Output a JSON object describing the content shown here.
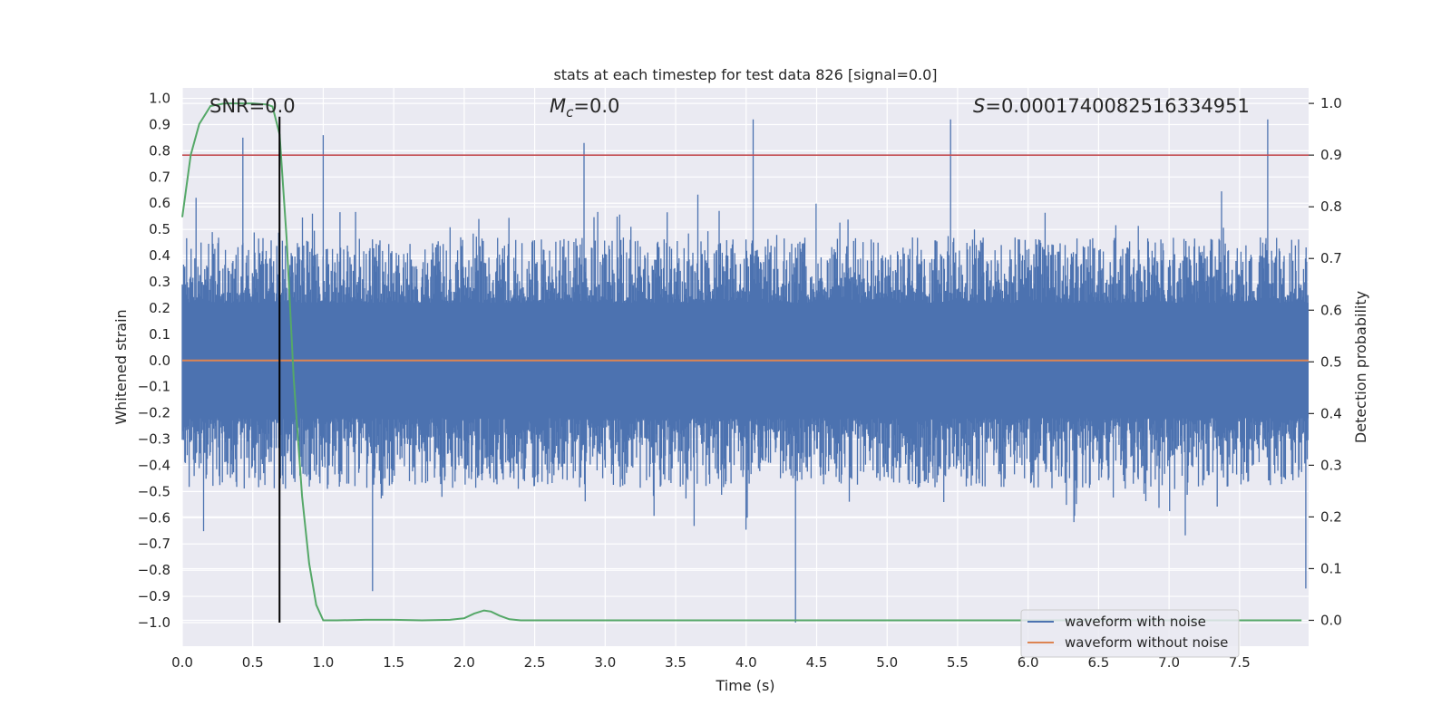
{
  "chart_data": {
    "type": "line",
    "title": "stats at each timestep for test data 826 [signal=0.0]",
    "xlabel": "Time (s)",
    "ylabel": "Whitened strain",
    "y2label": "Detection probability",
    "xlim": [
      0.0,
      7.99
    ],
    "ylim": [
      -1.09,
      1.04
    ],
    "y2lim": [
      -0.05,
      1.03
    ],
    "x_ticks": [
      0.0,
      0.5,
      1.0,
      1.5,
      2.0,
      2.5,
      3.0,
      3.5,
      4.0,
      4.5,
      5.0,
      5.5,
      6.0,
      6.5,
      7.0,
      7.5
    ],
    "x_tick_labels": [
      "0.0",
      "0.5",
      "1.0",
      "1.5",
      "2.0",
      "2.5",
      "3.0",
      "3.5",
      "4.0",
      "4.5",
      "5.0",
      "5.5",
      "6.0",
      "6.5",
      "7.0",
      "7.5"
    ],
    "y_ticks": [
      1.0,
      0.9,
      0.8,
      0.7,
      0.6,
      0.5,
      0.4,
      0.3,
      0.2,
      0.1,
      0.0,
      -0.1,
      -0.2,
      -0.3,
      -0.4,
      -0.5,
      -0.6,
      -0.7,
      -0.8,
      -0.9,
      -1.0
    ],
    "y_tick_labels": [
      "1.0",
      "0.9",
      "0.8",
      "0.7",
      "0.6",
      "0.5",
      "0.4",
      "0.3",
      "0.2",
      "0.1",
      "0.0",
      "−0.1",
      "−0.2",
      "−0.3",
      "−0.4",
      "−0.5",
      "−0.6",
      "−0.7",
      "−0.8",
      "−0.9",
      "−1.0"
    ],
    "y2_ticks": [
      1.0,
      0.9,
      0.8,
      0.7,
      0.6,
      0.5,
      0.4,
      0.3,
      0.2,
      0.1,
      0.0
    ],
    "y2_tick_labels": [
      "1.0",
      "0.9",
      "0.8",
      "0.7",
      "0.6",
      "0.5",
      "0.4",
      "0.3",
      "0.2",
      "0.1",
      "0.0"
    ],
    "threshold": {
      "y2": 0.9,
      "color": "#c44e52"
    },
    "vline": {
      "x": 0.69,
      "ymin": -1.0,
      "ymax": 0.93,
      "color": "#000000"
    },
    "annotations": {
      "snr": "SNR=0.0",
      "mc_symbol": "M",
      "mc_sub": "c",
      "mc_value": "=0.0",
      "s_symbol": "S",
      "s_value": "=0.0001740082516334951"
    },
    "series": [
      {
        "name": "waveform with noise",
        "axis": "left",
        "color": "#4c72b0",
        "description": "dense whitened strain noise, roughly uniform in time",
        "typical_range": [
          -0.45,
          0.45
        ],
        "peak_range": [
          -1.0,
          0.92
        ],
        "notable_peaks": [
          {
            "x": 0.43,
            "y": 0.85
          },
          {
            "x": 1.0,
            "y": 0.86
          },
          {
            "x": 2.85,
            "y": 0.83
          },
          {
            "x": 4.05,
            "y": 0.92
          },
          {
            "x": 5.45,
            "y": 0.92
          },
          {
            "x": 7.7,
            "y": 0.92
          },
          {
            "x": 4.35,
            "y": -1.0
          },
          {
            "x": 1.35,
            "y": -0.88
          },
          {
            "x": 7.97,
            "y": -0.87
          }
        ]
      },
      {
        "name": "waveform without noise",
        "axis": "left",
        "color": "#dd8452",
        "x": [
          0.0,
          7.99
        ],
        "y": [
          0.0,
          0.0
        ]
      },
      {
        "name": "detection probability",
        "axis": "right",
        "color": "#55a868",
        "x": [
          0.0,
          0.06,
          0.12,
          0.2,
          0.3,
          0.4,
          0.5,
          0.6,
          0.64,
          0.69,
          0.74,
          0.79,
          0.85,
          0.9,
          0.95,
          1.0,
          1.1,
          1.3,
          1.5,
          1.7,
          1.9,
          2.0,
          2.07,
          2.14,
          2.19,
          2.25,
          2.32,
          2.4,
          2.6,
          3.0,
          4.0,
          5.0,
          6.0,
          7.0,
          7.94
        ],
        "y": [
          0.78,
          0.9,
          0.96,
          0.995,
          1.0,
          1.0,
          1.0,
          0.998,
          0.994,
          0.94,
          0.74,
          0.47,
          0.24,
          0.11,
          0.03,
          0.0,
          0.0,
          0.001,
          0.001,
          0.0,
          0.001,
          0.004,
          0.013,
          0.019,
          0.017,
          0.009,
          0.002,
          0.0,
          0.0,
          0.0,
          0.0,
          0.0,
          0.0,
          0.0,
          0.0
        ]
      }
    ],
    "legend": {
      "placement": "lower-right",
      "entries": [
        {
          "label": "waveform with noise",
          "color": "#4c72b0"
        },
        {
          "label": "waveform without noise",
          "color": "#dd8452"
        }
      ]
    }
  }
}
